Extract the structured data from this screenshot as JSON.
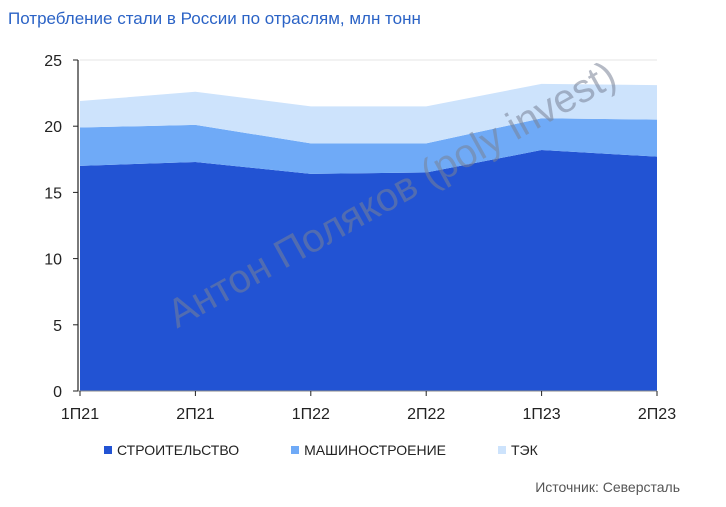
{
  "chart_data": {
    "type": "area",
    "stacked": true,
    "title": "Потребление стали в России по отраслям, млн тонн",
    "categories": [
      "1П21",
      "2П21",
      "1П22",
      "2П22",
      "1П23",
      "2П23"
    ],
    "series": [
      {
        "name": "СТРОИТЕЛЬСТВО",
        "color": "#2253d3",
        "values": [
          17.0,
          17.3,
          16.4,
          16.5,
          18.2,
          17.7
        ]
      },
      {
        "name": "МАШИНОСТРОЕНИЕ",
        "color": "#6faaf7",
        "values": [
          2.9,
          2.8,
          2.3,
          2.2,
          2.4,
          2.8
        ]
      },
      {
        "name": "ТЭК",
        "color": "#cde3fc",
        "values": [
          2.0,
          2.5,
          2.8,
          2.8,
          2.6,
          2.6
        ]
      }
    ],
    "ylim": [
      0,
      25
    ],
    "yticks": [
      0,
      5,
      10,
      15,
      20,
      25
    ],
    "grid": false,
    "legend_position": "bottom"
  },
  "source": "Источник: Северсталь",
  "watermark": "Антон Поляков (poly invest)"
}
